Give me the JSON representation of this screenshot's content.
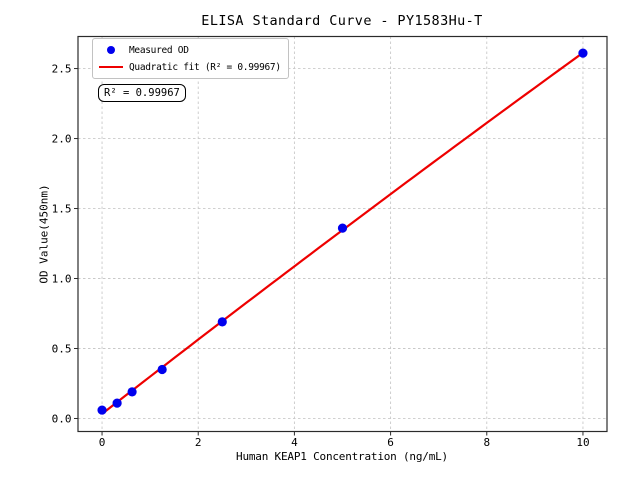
{
  "chart_data": {
    "type": "scatter",
    "title": "ELISA Standard Curve - PY1583Hu-T",
    "xlabel": "Human KEAP1 Concentration (ng/mL)",
    "ylabel": "OD Value(450nm)",
    "x": [
      0,
      0.313,
      0.625,
      1.25,
      2.5,
      5,
      10
    ],
    "y": [
      0.06,
      0.11,
      0.19,
      0.35,
      0.69,
      1.36,
      2.61
    ],
    "fit": "quadratic",
    "r_squared": 0.99967,
    "xlim": [
      -0.5,
      10.5
    ],
    "ylim": [
      -0.093,
      2.729
    ],
    "x_ticks": [
      0,
      2,
      4,
      6,
      8,
      10
    ],
    "x_tick_labels": [
      "0",
      "2",
      "4",
      "6",
      "8",
      "10"
    ],
    "y_ticks": [
      0,
      0.5,
      1,
      1.5,
      2,
      2.5
    ],
    "y_tick_labels": [
      "0.0",
      "0.5",
      "1.0",
      "1.5",
      "2.0",
      "2.5"
    ],
    "grid": true,
    "legend_position": "upper left"
  },
  "legend": {
    "items": [
      {
        "label": "Measured OD",
        "marker": "dot",
        "color": "#0000ee"
      },
      {
        "label": "Quadratic fit (R² = 0.99967)",
        "marker": "line",
        "color": "#ee0000"
      }
    ]
  },
  "annotation": {
    "text": "R² = 0.99967"
  },
  "colors": {
    "marker": "#0000ee",
    "fit_line": "#ee0000",
    "grid": "#c9c9c9",
    "spine": "#2b2b2b",
    "text": "#000000",
    "background": "#ffffff"
  }
}
